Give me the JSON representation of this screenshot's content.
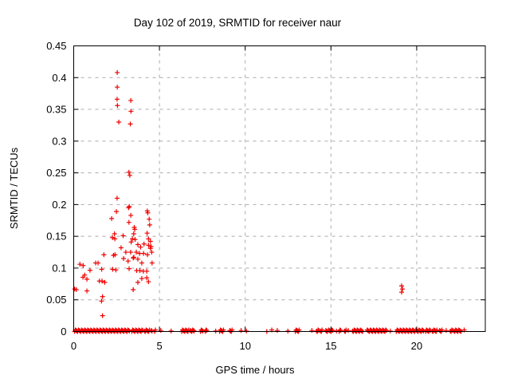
{
  "title": "Day 102 of 2019, SRMTID for receiver naur",
  "xlabel": "GPS time / hours",
  "ylabel": "SRMTID / TECUs",
  "colors": {
    "marker": "#f00000",
    "grid": "#ababab",
    "axis": "#000000",
    "background": "#ffffff",
    "text": "#000000"
  },
  "chart_data": {
    "type": "scatter",
    "marker": "plus",
    "title": "Day 102 of 2019, SRMTID for receiver naur",
    "xlabel": "GPS time / hours",
    "ylabel": "SRMTID / TECUs",
    "xlim": [
      0,
      24
    ],
    "ylim": [
      0,
      0.45
    ],
    "grid": true,
    "x_ticks": [
      {
        "value": 0,
        "label": "0"
      },
      {
        "value": 5,
        "label": "5"
      },
      {
        "value": 10,
        "label": "10"
      },
      {
        "value": 15,
        "label": "15"
      },
      {
        "value": 20,
        "label": "20"
      }
    ],
    "y_ticks": [
      {
        "value": 0.0,
        "label": "0"
      },
      {
        "value": 0.05,
        "label": "0.05"
      },
      {
        "value": 0.1,
        "label": "0.1"
      },
      {
        "value": 0.15,
        "label": "0.15"
      },
      {
        "value": 0.2,
        "label": "0.2"
      },
      {
        "value": 0.25,
        "label": "0.25"
      },
      {
        "value": 0.3,
        "label": "0.3"
      },
      {
        "value": 0.35,
        "label": "0.35"
      },
      {
        "value": 0.4,
        "label": "0.4"
      },
      {
        "value": 0.45,
        "label": "0.45"
      }
    ],
    "points": [
      [
        0.05,
        0.067
      ],
      [
        0.15,
        0.066
      ],
      [
        0.36,
        0.106
      ],
      [
        0.54,
        0.0855
      ],
      [
        0.55,
        0.104
      ],
      [
        0.64,
        0.089
      ],
      [
        0.77,
        0.0825
      ],
      [
        0.77,
        0.064
      ],
      [
        0.95,
        0.0965
      ],
      [
        1.28,
        0.108
      ],
      [
        1.42,
        0.108
      ],
      [
        1.5,
        0.0795
      ],
      [
        1.62,
        0.048
      ],
      [
        1.63,
        0.098
      ],
      [
        1.65,
        0.0795
      ],
      [
        1.68,
        0.055
      ],
      [
        1.68,
        0.025
      ],
      [
        1.76,
        0.121
      ],
      [
        1.81,
        0.0775
      ],
      [
        2.21,
        0.178
      ],
      [
        2.26,
        0.148
      ],
      [
        2.27,
        0.098
      ],
      [
        2.32,
        0.12
      ],
      [
        2.38,
        0.154
      ],
      [
        2.4,
        0.146
      ],
      [
        2.41,
        0.121
      ],
      [
        2.46,
        0.097
      ],
      [
        2.49,
        0.189
      ],
      [
        2.53,
        0.366
      ],
      [
        2.53,
        0.21
      ],
      [
        2.54,
        0.408
      ],
      [
        2.54,
        0.385
      ],
      [
        2.55,
        0.356
      ],
      [
        2.63,
        0.33
      ],
      [
        2.76,
        0.132
      ],
      [
        2.88,
        0.151
      ],
      [
        2.91,
        0.115
      ],
      [
        3.04,
        0.125
      ],
      [
        3.17,
        0.111
      ],
      [
        3.2,
        0.195
      ],
      [
        3.22,
        0.251
      ],
      [
        3.22,
        0.172
      ],
      [
        3.23,
        0.099
      ],
      [
        3.24,
        0.197
      ],
      [
        3.27,
        0.246
      ],
      [
        3.3,
        0.327
      ],
      [
        3.32,
        0.125
      ],
      [
        3.33,
        0.364
      ],
      [
        3.33,
        0.183
      ],
      [
        3.34,
        0.347
      ],
      [
        3.35,
        0.141
      ],
      [
        3.42,
        0.146
      ],
      [
        3.47,
        0.116
      ],
      [
        3.47,
        0.066
      ],
      [
        3.5,
        0.154
      ],
      [
        3.51,
        0.117
      ],
      [
        3.53,
        0.164
      ],
      [
        3.56,
        0.161
      ],
      [
        3.58,
        0.145
      ],
      [
        3.65,
        0.125
      ],
      [
        3.67,
        0.096
      ],
      [
        3.74,
        0.137
      ],
      [
        3.74,
        0.114
      ],
      [
        3.74,
        0.0775
      ],
      [
        3.84,
        0.123
      ],
      [
        3.86,
        0.096
      ],
      [
        3.9,
        0.133
      ],
      [
        3.97,
        0.108
      ],
      [
        3.97,
        0.0835
      ],
      [
        4.06,
        0.095
      ],
      [
        4.07,
        0.123
      ],
      [
        4.1,
        0.138
      ],
      [
        4.26,
        0.095
      ],
      [
        4.26,
        0.0845
      ],
      [
        4.28,
        0.155
      ],
      [
        4.29,
        0.19
      ],
      [
        4.3,
        0.121
      ],
      [
        4.32,
        0.187
      ],
      [
        4.36,
        0.146
      ],
      [
        4.36,
        0.136
      ],
      [
        4.36,
        0.0785
      ],
      [
        4.4,
        0.177
      ],
      [
        4.43,
        0.168
      ],
      [
        4.47,
        0.142
      ],
      [
        4.47,
        0.131
      ],
      [
        4.51,
        0.134
      ],
      [
        4.55,
        0.125
      ],
      [
        4.57,
        0.108
      ],
      [
        19.12,
        0.072
      ],
      [
        19.12,
        0.062
      ],
      [
        19.17,
        0.067
      ]
    ],
    "zero_band": {
      "value": 0,
      "runs": [
        [
          0.05,
          3.27
        ],
        [
          3.39,
          4.06
        ],
        [
          4.13,
          4.32
        ],
        [
          4.37,
          4.44
        ],
        [
          4.52,
          4.6
        ],
        [
          4.72,
          4.78
        ],
        [
          5.08,
          5.08
        ],
        [
          5.68,
          5.68
        ],
        [
          6.3,
          6.74
        ],
        [
          6.8,
          7.05
        ],
        [
          7.39,
          7.54
        ],
        [
          7.67,
          7.78
        ],
        [
          8.28,
          8.28
        ],
        [
          8.51,
          8.76
        ],
        [
          9.1,
          9.25
        ],
        [
          9.76,
          9.76
        ],
        [
          10.07,
          10.07
        ],
        [
          11.26,
          11.26
        ],
        [
          11.55,
          11.55
        ],
        [
          11.87,
          11.87
        ],
        [
          12.49,
          12.49
        ],
        [
          12.92,
          13.15
        ],
        [
          13.89,
          13.89
        ],
        [
          14.16,
          14.31
        ],
        [
          14.39,
          14.52
        ],
        [
          14.7,
          14.79
        ],
        [
          14.86,
          14.95
        ],
        [
          15.01,
          15.14
        ],
        [
          15.32,
          15.32
        ],
        [
          15.48,
          15.6
        ],
        [
          15.79,
          15.91
        ],
        [
          16.01,
          16.01
        ],
        [
          16.26,
          16.88
        ],
        [
          17.11,
          18.27
        ],
        [
          18.46,
          18.46
        ],
        [
          18.81,
          19.9
        ],
        [
          19.95,
          20.41
        ],
        [
          20.52,
          20.83
        ],
        [
          20.91,
          21.19
        ],
        [
          21.34,
          21.5
        ],
        [
          21.72,
          21.72
        ],
        [
          21.96,
          22.12
        ],
        [
          22.18,
          22.61
        ],
        [
          22.77,
          22.77
        ]
      ]
    }
  }
}
